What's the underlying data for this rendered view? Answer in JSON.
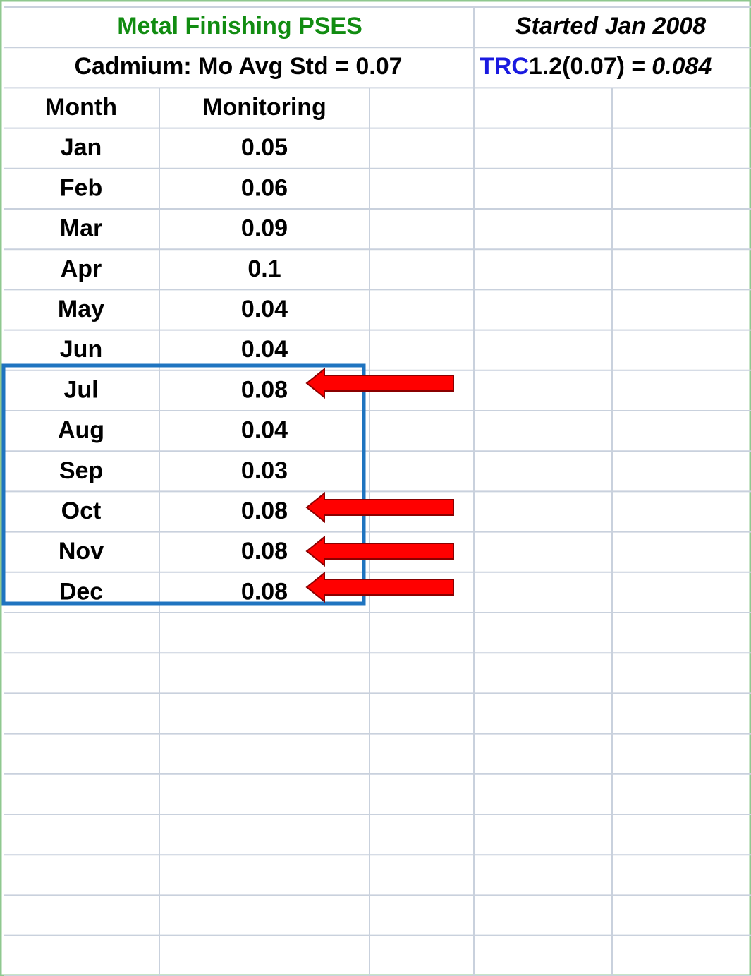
{
  "header": {
    "title": "Metal Finishing PSES",
    "started": "Started Jan 2008",
    "standard": "Cadmium: Mo Avg Std = 0.07",
    "formula": {
      "prefix": "TRC",
      "expression": "1.2(0.07) =",
      "result": "0.084"
    }
  },
  "table": {
    "columns": [
      "Month",
      "Monitoring"
    ],
    "rows": [
      [
        "Jan",
        0.05
      ],
      [
        "Feb",
        0.06
      ],
      [
        "Mar",
        0.09
      ],
      [
        "Apr",
        0.1
      ],
      [
        "May",
        0.04
      ],
      [
        "Jun",
        0.04
      ],
      [
        "Jul",
        0.08
      ],
      [
        "Aug",
        0.04
      ],
      [
        "Sep",
        0.03
      ],
      [
        "Oct",
        0.08
      ],
      [
        "Nov",
        0.08
      ],
      [
        "Dec",
        0.08
      ]
    ]
  }
}
